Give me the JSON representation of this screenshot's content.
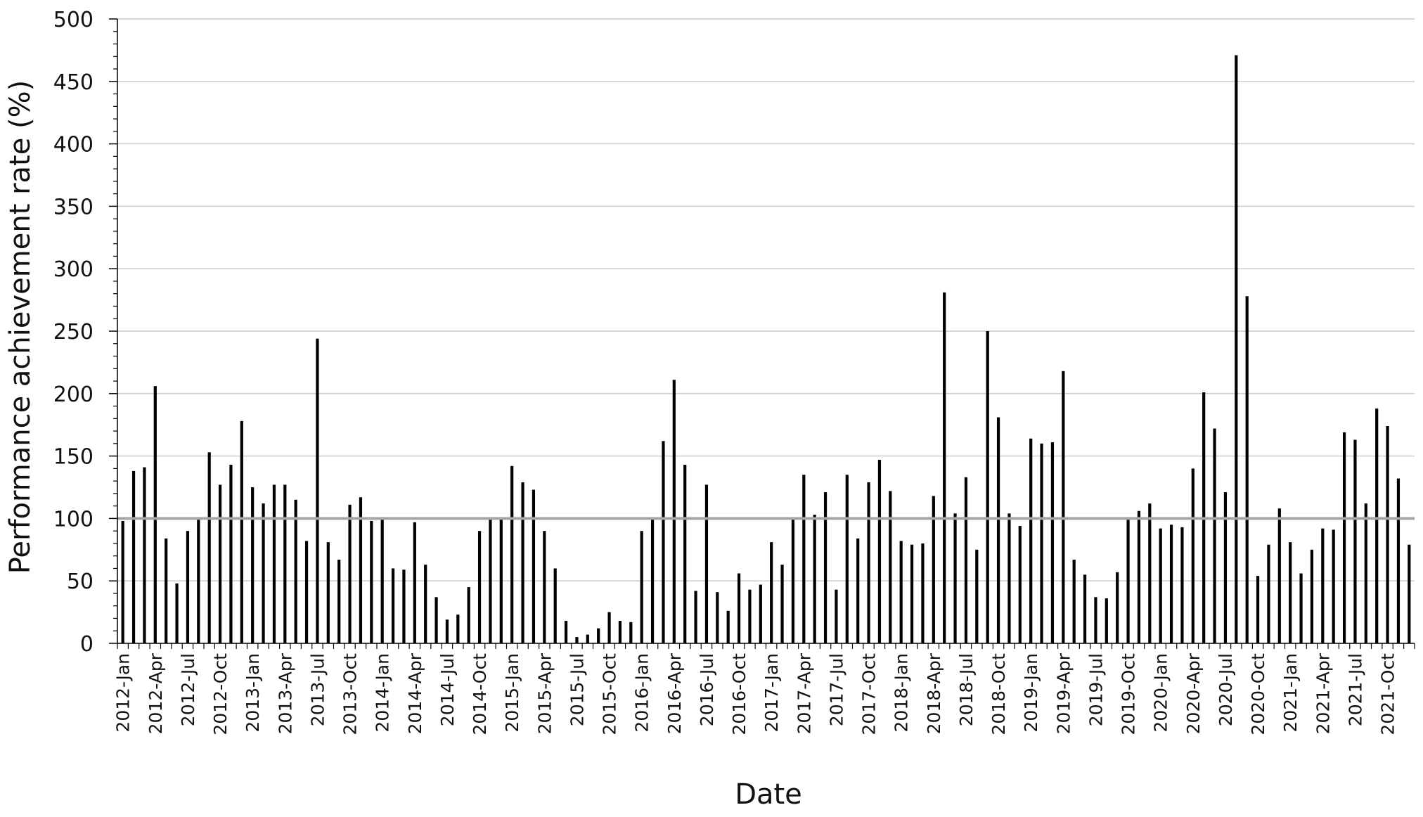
{
  "chart_data": {
    "type": "bar",
    "xlabel": "Date",
    "ylabel": "Performance achievement rate (%)",
    "ylim": [
      0,
      500
    ],
    "yticks": [
      0,
      50,
      100,
      150,
      200,
      250,
      300,
      350,
      400,
      450,
      500
    ],
    "grid": true,
    "reference_line": 100,
    "tick_labels": [
      "2012-Jan",
      "2012-Apr",
      "2012-Jul",
      "2012-Oct",
      "2013-Jan",
      "2013-Apr",
      "2013-Jul",
      "2013-Oct",
      "2014-Jan",
      "2014-Apr",
      "2014-Jul",
      "2014-Oct",
      "2015-Jan",
      "2015-Apr",
      "2015-Jul",
      "2015-Oct",
      "2016-Jan",
      "2016-Apr",
      "2016-Jul",
      "2016-Oct",
      "2017-Jan",
      "2017-Apr",
      "2017-Jul",
      "2017-Oct",
      "2018-Jan",
      "2018-Apr",
      "2018-Jul",
      "2018-Oct",
      "2019-Jan",
      "2019-Apr",
      "2019-Jul",
      "2019-Oct",
      "2020-Jan",
      "2020-Apr",
      "2020-Jul",
      "2020-Oct",
      "2021-Jan",
      "2021-Apr",
      "2021-Jul",
      "2021-Oct"
    ],
    "values": [
      98,
      138,
      141,
      206,
      84,
      48,
      90,
      99,
      153,
      127,
      143,
      178,
      125,
      112,
      127,
      127,
      115,
      82,
      244,
      81,
      67,
      111,
      117,
      98,
      100,
      60,
      59,
      97,
      63,
      37,
      19,
      23,
      45,
      90,
      100,
      100,
      142,
      129,
      123,
      90,
      60,
      18,
      5,
      7,
      12,
      25,
      18,
      17,
      90,
      100,
      162,
      211,
      143,
      42,
      127,
      41,
      26,
      56,
      43,
      47,
      81,
      63,
      100,
      135,
      103,
      121,
      43,
      135,
      84,
      129,
      147,
      122,
      82,
      79,
      80,
      118,
      281,
      104,
      133,
      75,
      250,
      181,
      104,
      94,
      164,
      160,
      161,
      218,
      67,
      55,
      37,
      36,
      57,
      100,
      106,
      112,
      92,
      95,
      93,
      140,
      201,
      172,
      121,
      471,
      278,
      54,
      79,
      108,
      81,
      56,
      75,
      92,
      91,
      169,
      163,
      112,
      188,
      174,
      132,
      79
    ]
  }
}
